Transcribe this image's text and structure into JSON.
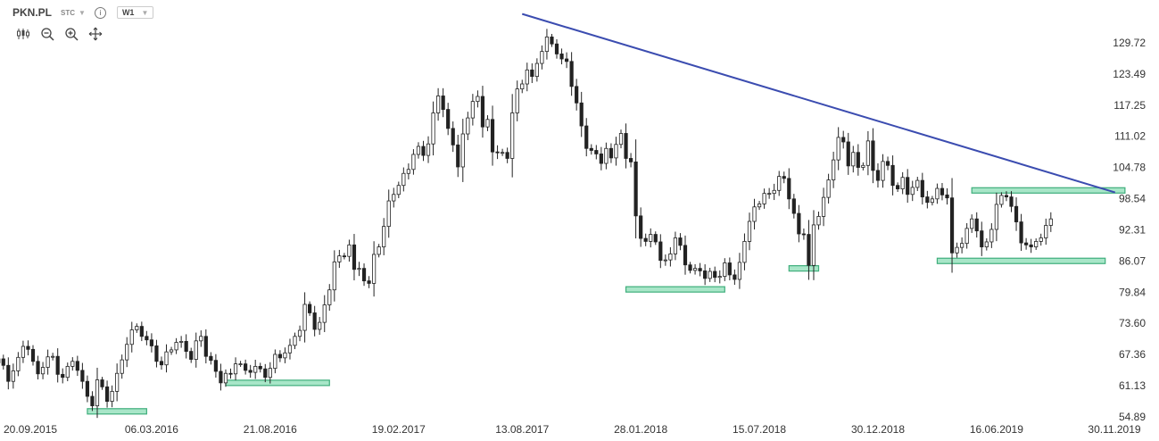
{
  "header": {
    "symbol": "PKN.PL",
    "source": "STC",
    "interval": "W1",
    "info_icon": "info-icon",
    "tools": [
      "candles-icon",
      "zoom-out-icon",
      "zoom-in-icon",
      "crosshair-icon"
    ]
  },
  "colors": {
    "candle": "#222222",
    "trendline": "#3b4cb0",
    "zone_fill": "#a8e6c8",
    "zone_border": "#3fae7c"
  },
  "chart_data": {
    "type": "candlestick",
    "title": "",
    "y_ticks": [
      "129.72",
      "123.49",
      "117.25",
      "111.02",
      "104.78",
      "98.54",
      "92.31",
      "86.07",
      "79.84",
      "73.60",
      "67.36",
      "61.13",
      "54.89"
    ],
    "x_ticks": [
      "20.09.2015",
      "06.03.2016",
      "21.08.2016",
      "19.02.2017",
      "13.08.2017",
      "28.01.2018",
      "15.07.2018",
      "30.12.2018",
      "16.06.2019",
      "30.11.2019"
    ],
    "ylim": [
      54.89,
      135.5
    ],
    "xlim": [
      "2015-08-01",
      "2019-12-15"
    ],
    "candles_close": [
      66.5,
      65.2,
      62.0,
      64.1,
      66.8,
      69.0,
      68.4,
      66.0,
      63.5,
      64.8,
      66.9,
      67.0,
      63.4,
      62.8,
      65.0,
      66.0,
      64.2,
      62.0,
      59.0,
      57.1,
      62.3,
      60.9,
      58.0,
      60.0,
      63.6,
      66.3,
      69.4,
      72.3,
      73.0,
      71.0,
      70.3,
      69.1,
      66.0,
      65.3,
      67.9,
      68.3,
      69.8,
      70.0,
      68.0,
      66.4,
      70.1,
      71.0,
      67.0,
      66.2,
      64.0,
      61.7,
      63.6,
      63.5,
      65.5,
      65.5,
      64.2,
      63.8,
      65.0,
      64.5,
      62.8,
      64.6,
      67.4,
      66.7,
      67.7,
      69.2,
      71.0,
      72.2,
      77.4,
      75.7,
      72.4,
      73.8,
      77.3,
      80.3,
      85.9,
      87.1,
      87.0,
      89.3,
      84.4,
      84.6,
      82.1,
      81.6,
      87.4,
      88.9,
      93.0,
      98.1,
      99.4,
      101.2,
      103.6,
      104.4,
      107.4,
      109.0,
      107.2,
      109.5,
      115.7,
      119.1,
      116.4,
      112.6,
      109.3,
      104.9,
      111.5,
      114.7,
      118.0,
      119.0,
      112.9,
      114.4,
      107.9,
      107.8,
      107.8,
      106.6,
      115.7,
      120.5,
      121.5,
      124.3,
      123.0,
      125.6,
      128.0,
      130.9,
      129.5,
      127.5,
      126.5,
      126.0,
      121.0,
      117.7,
      113.1,
      108.6,
      108.2,
      107.5,
      105.6,
      108.6,
      106.7,
      109.4,
      111.6,
      106.6,
      105.9,
      95.1,
      90.6,
      90.0,
      91.4,
      89.9,
      86.2,
      86.3,
      87.5,
      90.7,
      89.2,
      85.3,
      84.2,
      84.6,
      84.1,
      82.6,
      84.0,
      82.8,
      83.0,
      85.7,
      83.3,
      82.4,
      85.8,
      90.0,
      94.0,
      96.9,
      97.5,
      99.6,
      99.6,
      100.2,
      103.0,
      102.6,
      98.5,
      95.6,
      91.5,
      91.4,
      85.2,
      93.3,
      95.0,
      98.8,
      102.3,
      106.3,
      110.8,
      109.9,
      105.1,
      107.8,
      104.8,
      105.2,
      110.1,
      104.2,
      102.2,
      106.0,
      105.2,
      101.2,
      100.5,
      102.8,
      99.4,
      100.8,
      102.2,
      98.9,
      97.8,
      98.5,
      100.6,
      99.3,
      98.7,
      87.7,
      88.8,
      89.6,
      92.6,
      94.5,
      92.1,
      88.9,
      89.9,
      92.4,
      97.4,
      99.2,
      98.9,
      97.0,
      93.9,
      89.7,
      89.3,
      88.9,
      90.0,
      90.7,
      93.2,
      94.5
    ],
    "trendline": [
      {
        "date": "2017-08-13",
        "price": 135.5
      },
      {
        "date": "2019-12-01",
        "price": 99.8
      }
    ],
    "support_zones": [
      {
        "from": "2015-12-06",
        "to": "2016-02-28",
        "price": 56.0
      },
      {
        "from": "2016-06-19",
        "to": "2016-11-13",
        "price": 61.7
      },
      {
        "from": "2018-01-07",
        "to": "2018-05-27",
        "price": 80.4
      },
      {
        "from": "2018-08-26",
        "to": "2018-10-07",
        "price": 84.6
      },
      {
        "from": "2019-03-24",
        "to": "2019-11-17",
        "price": 86.1
      },
      {
        "from": "2019-05-12",
        "to": "2019-12-15",
        "price": 100.2
      }
    ]
  }
}
